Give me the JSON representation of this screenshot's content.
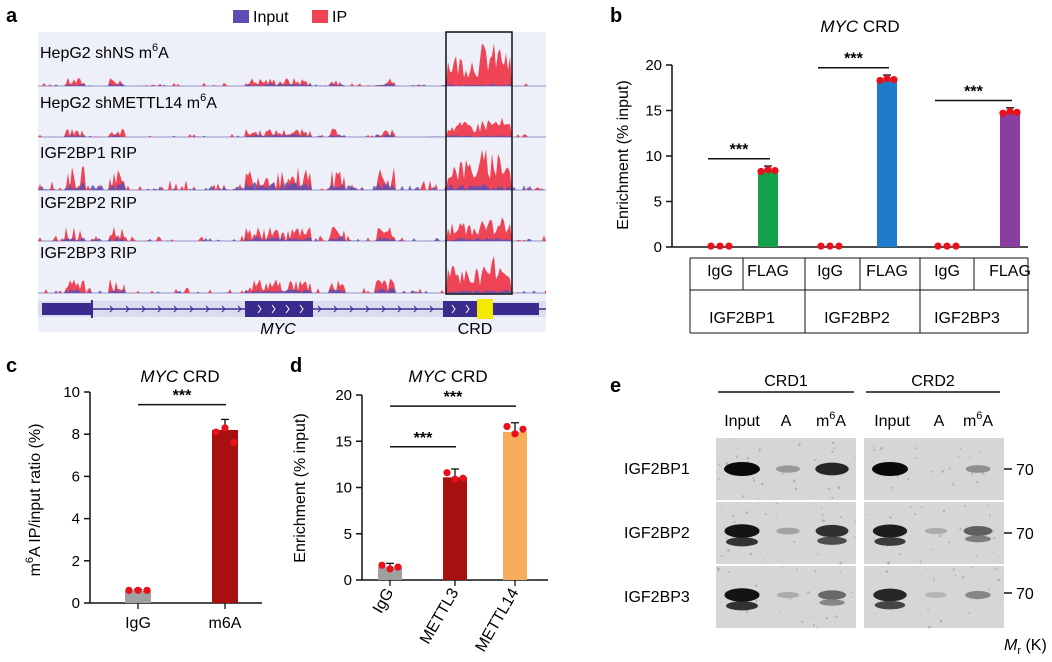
{
  "colors": {
    "input": "#5b4fb5",
    "ip": "#ee4455",
    "track_bg": "#edf0f8",
    "gene": "#3a2a8e",
    "crd_box": "#f2ea00",
    "green": "#13a04a",
    "blue": "#1f7bcc",
    "purple": "#8a3fa0",
    "darkred": "#a80f0f",
    "orange": "#f6ae5e",
    "gray": "#a0a0a0",
    "dot": "#e8101a"
  },
  "panel_a": {
    "letter": "a",
    "legend": [
      {
        "label": "Input",
        "color_key": "input"
      },
      {
        "label": "IP",
        "color_key": "ip"
      }
    ],
    "tracks": [
      {
        "prefix": "HepG2 shNS m",
        "sup": "6",
        "suffix": "A",
        "crd_height": 1.0,
        "density": "low"
      },
      {
        "prefix": "HepG2 shMETTL14 m",
        "sup": "6",
        "suffix": "A",
        "crd_height": 0.45,
        "density": "low"
      },
      {
        "prefix": "IGF2BP1 RIP",
        "sup": "",
        "suffix": "",
        "crd_height": 0.95,
        "density": "high"
      },
      {
        "prefix": "IGF2BP2 RIP",
        "sup": "",
        "suffix": "",
        "crd_height": 0.55,
        "density": "medium"
      },
      {
        "prefix": "IGF2BP3 RIP",
        "sup": "",
        "suffix": "",
        "crd_height": 0.85,
        "density": "medium"
      }
    ],
    "gene_label": "MYC",
    "crd_label": "CRD"
  },
  "panel_b": {
    "letter": "b",
    "title_italic": "MYC",
    "title_rest": " CRD",
    "ylabel": "Enrichment (% input)",
    "ylim": [
      0,
      20
    ],
    "yticks": [
      0,
      5,
      10,
      15,
      20
    ],
    "groups": [
      {
        "name": "IGF2BP1",
        "bars": [
          {
            "label": "IgG",
            "value": 0.1,
            "color_key": "gray"
          },
          {
            "label": "FLAG",
            "value": 8.4,
            "color_key": "green"
          }
        ],
        "sig": "***"
      },
      {
        "name": "IGF2BP2",
        "bars": [
          {
            "label": "IgG",
            "value": 0.1,
            "color_key": "gray"
          },
          {
            "label": "FLAG",
            "value": 18.4,
            "color_key": "blue"
          }
        ],
        "sig": "***"
      },
      {
        "name": "IGF2BP3",
        "bars": [
          {
            "label": "IgG",
            "value": 0.1,
            "color_key": "gray"
          },
          {
            "label": "FLAG",
            "value": 14.8,
            "color_key": "purple"
          }
        ],
        "sig": "***"
      }
    ]
  },
  "panel_c": {
    "letter": "c",
    "title_italic": "MYC",
    "title_rest": " CRD",
    "ylabel_pre": "m",
    "ylabel_sup": "6",
    "ylabel_post": "A IP/input ratio (%)",
    "ylim": [
      0,
      10
    ],
    "yticks": [
      0,
      2,
      4,
      6,
      8,
      10
    ],
    "bars": [
      {
        "label": "IgG",
        "value": 0.6,
        "err": 0.05,
        "color_key": "gray",
        "dots": [
          0.6,
          0.6,
          0.6
        ]
      },
      {
        "label": "m6A",
        "value": 8.2,
        "err": 0.5,
        "color_key": "darkred",
        "dots": [
          8.1,
          8.3,
          7.6
        ]
      }
    ],
    "sig": "***"
  },
  "panel_d": {
    "letter": "d",
    "title_italic": "MYC",
    "title_rest": " CRD",
    "ylabel": "Enrichment (% input)",
    "ylim": [
      0,
      20
    ],
    "yticks": [
      0,
      5,
      10,
      15,
      20
    ],
    "bars": [
      {
        "label": "IgG",
        "value": 1.4,
        "err": 0.4,
        "color_key": "gray",
        "dots": [
          1.6,
          1.2,
          1.4
        ]
      },
      {
        "label": "METTL3",
        "value": 11.1,
        "err": 0.9,
        "color_key": "darkred",
        "dots": [
          11.6,
          10.9,
          11.0
        ]
      },
      {
        "label": "METTL14",
        "value": 16.0,
        "err": 1.0,
        "color_key": "orange",
        "dots": [
          16.6,
          15.8,
          16.3
        ]
      }
    ],
    "sigs": [
      "***",
      "***"
    ]
  },
  "panel_e": {
    "letter": "e",
    "crd1": "CRD1",
    "crd2": "CRD2",
    "lanes": [
      {
        "prefix": "Input",
        "sup": "",
        "suffix": ""
      },
      {
        "prefix": "A",
        "sup": "",
        "suffix": ""
      },
      {
        "prefix": "m",
        "sup": "6",
        "suffix": "A"
      }
    ],
    "rows": [
      {
        "name": "IGF2BP1",
        "marker": "70",
        "bands1": [
          1.0,
          0.25,
          0.85
        ],
        "bands2": [
          1.0,
          0.0,
          0.3
        ]
      },
      {
        "name": "IGF2BP2",
        "marker": "70",
        "bands1": [
          0.95,
          0.2,
          0.8
        ],
        "bands2": [
          0.9,
          0.15,
          0.55
        ]
      },
      {
        "name": "IGF2BP3",
        "marker": "70",
        "bands1": [
          0.95,
          0.15,
          0.5
        ],
        "bands2": [
          0.85,
          0.1,
          0.35
        ]
      }
    ],
    "mr_italic": "M",
    "mr_sub": "r",
    "mr_rest": " (K)"
  }
}
